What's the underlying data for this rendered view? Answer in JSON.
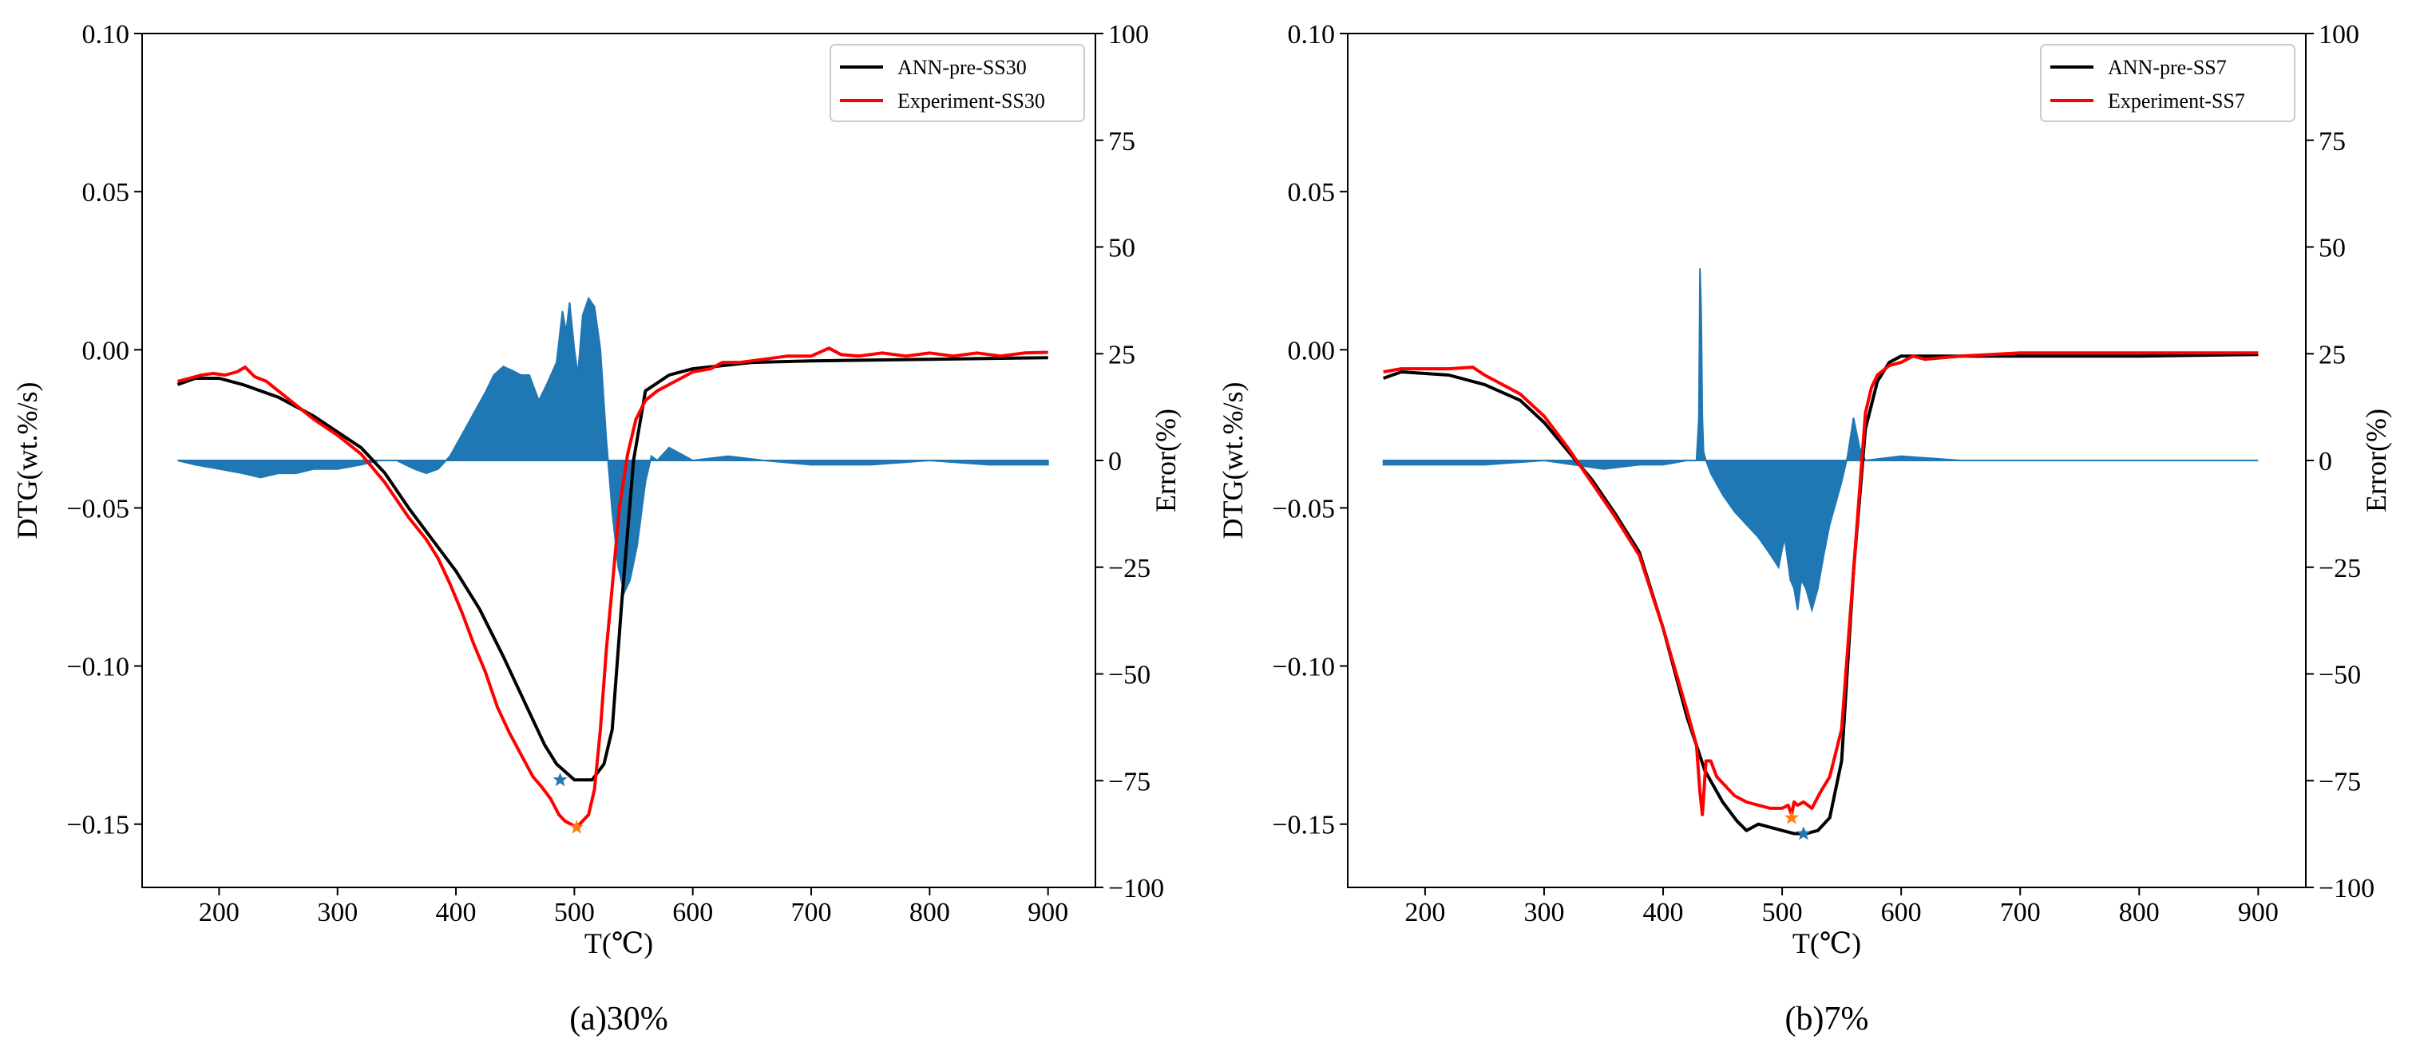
{
  "colors": {
    "ann": "#000000",
    "experiment": "#ff0000",
    "error": "#1f77b4",
    "peak_ann": "#1f77b4",
    "peak_exp": "#ff7f0e"
  },
  "chart_data": [
    {
      "type": "line",
      "panel_label": "(a)30%",
      "xlabel": "T(℃)",
      "ylabel": "DTG(wt.%/s)",
      "y2label": "Error(%)",
      "xlim": [
        135,
        940
      ],
      "ylim": [
        -0.17,
        0.1
      ],
      "y2lim": [
        -100,
        100
      ],
      "xticks": [
        200,
        300,
        400,
        500,
        600,
        700,
        800,
        900
      ],
      "xtick_labels": [
        "200",
        "300",
        "400",
        "500",
        "600",
        "700",
        "800",
        "900"
      ],
      "yticks": [
        0.1,
        0.05,
        0.0,
        -0.05,
        -0.1,
        -0.15
      ],
      "ytick_labels": [
        "0.10",
        "0.05",
        "0.00",
        "−0.05",
        "−0.10",
        "−0.15"
      ],
      "y2ticks": [
        100,
        75,
        50,
        25,
        0,
        -25,
        -50,
        -75,
        -100
      ],
      "y2tick_labels": [
        "100",
        "75",
        "50",
        "25",
        "0",
        "−25",
        "−50",
        "−75",
        "−100"
      ],
      "legend_position": "top-right",
      "series": [
        {
          "name": "ANN-pre-SS30",
          "role": "ann",
          "axis": "left",
          "x": [
            165,
            180,
            200,
            220,
            250,
            280,
            300,
            320,
            340,
            360,
            380,
            400,
            420,
            440,
            460,
            475,
            485,
            500,
            515,
            525,
            532,
            540,
            550,
            560,
            580,
            600,
            650,
            700,
            800,
            900
          ],
          "y": [
            -0.011,
            -0.009,
            -0.009,
            -0.011,
            -0.015,
            -0.021,
            -0.026,
            -0.031,
            -0.039,
            -0.05,
            -0.06,
            -0.07,
            -0.082,
            -0.097,
            -0.113,
            -0.125,
            -0.131,
            -0.136,
            -0.136,
            -0.131,
            -0.12,
            -0.08,
            -0.035,
            -0.013,
            -0.008,
            -0.006,
            -0.004,
            -0.0035,
            -0.003,
            -0.0025
          ]
        },
        {
          "name": "Experiment-SS30",
          "role": "experiment",
          "axis": "left",
          "x": [
            165,
            175,
            185,
            195,
            205,
            215,
            222,
            230,
            240,
            260,
            280,
            300,
            320,
            340,
            360,
            375,
            385,
            395,
            405,
            415,
            425,
            435,
            445,
            455,
            465,
            472,
            480,
            487,
            492,
            497,
            502,
            507,
            512,
            517,
            522,
            527,
            532,
            538,
            545,
            552,
            560,
            570,
            580,
            590,
            600,
            615,
            625,
            640,
            660,
            680,
            700,
            715,
            725,
            740,
            760,
            780,
            800,
            820,
            840,
            860,
            880,
            900
          ],
          "y": [
            -0.01,
            -0.009,
            -0.008,
            -0.0075,
            -0.008,
            -0.007,
            -0.0055,
            -0.0085,
            -0.01,
            -0.016,
            -0.022,
            -0.027,
            -0.033,
            -0.042,
            -0.053,
            -0.06,
            -0.066,
            -0.074,
            -0.083,
            -0.093,
            -0.102,
            -0.113,
            -0.121,
            -0.128,
            -0.135,
            -0.138,
            -0.142,
            -0.147,
            -0.149,
            -0.15,
            -0.151,
            -0.149,
            -0.147,
            -0.139,
            -0.12,
            -0.095,
            -0.075,
            -0.05,
            -0.033,
            -0.022,
            -0.016,
            -0.013,
            -0.011,
            -0.009,
            -0.007,
            -0.006,
            -0.004,
            -0.004,
            -0.003,
            -0.002,
            -0.002,
            0.0005,
            -0.0015,
            -0.002,
            -0.001,
            -0.002,
            -0.001,
            -0.002,
            -0.001,
            -0.002,
            -0.001,
            -0.0008
          ]
        },
        {
          "name": "Error",
          "role": "error",
          "axis": "right",
          "kind": "fill",
          "x": [
            165,
            180,
            200,
            220,
            235,
            250,
            265,
            280,
            300,
            320,
            335,
            350,
            365,
            375,
            385,
            395,
            405,
            415,
            425,
            432,
            440,
            448,
            455,
            462,
            470,
            477,
            485,
            490,
            493,
            496,
            500,
            503,
            507,
            512,
            517,
            522,
            527,
            532,
            537,
            542,
            547,
            553,
            560,
            565,
            570,
            580,
            600,
            630,
            660,
            700,
            750,
            800,
            850,
            900
          ],
          "y": [
            0,
            -1,
            -2,
            -3,
            -4,
            -3,
            -3,
            -2,
            -2,
            -1,
            0,
            0,
            -2,
            -3,
            -2,
            1,
            6,
            11,
            16,
            20,
            22,
            21,
            20,
            20,
            14,
            18,
            23,
            35,
            30,
            37,
            26,
            20,
            34,
            38,
            36,
            26,
            5,
            -12,
            -25,
            -31,
            -28,
            -20,
            -5,
            1,
            0,
            3,
            0,
            1,
            0,
            -1,
            -1,
            0,
            -1,
            -1
          ]
        }
      ],
      "markers": [
        {
          "series": "ANN-pre-SS30",
          "x": 488,
          "y": -0.136,
          "role": "peak_ann"
        },
        {
          "series": "Experiment-SS30",
          "x": 502,
          "y": -0.151,
          "role": "peak_exp"
        }
      ]
    },
    {
      "type": "line",
      "panel_label": "(b)7%",
      "xlabel": "T(℃)",
      "ylabel": "DTG(wt.%/s)",
      "y2label": "Error(%)",
      "xlim": [
        135,
        940
      ],
      "ylim": [
        -0.17,
        0.1
      ],
      "y2lim": [
        -100,
        100
      ],
      "xticks": [
        200,
        300,
        400,
        500,
        600,
        700,
        800,
        900
      ],
      "xtick_labels": [
        "200",
        "300",
        "400",
        "500",
        "600",
        "700",
        "800",
        "900"
      ],
      "yticks": [
        0.1,
        0.05,
        0.0,
        -0.05,
        -0.1,
        -0.15
      ],
      "ytick_labels": [
        "0.10",
        "0.05",
        "0.00",
        "−0.05",
        "−0.10",
        "−0.15"
      ],
      "y2ticks": [
        100,
        75,
        50,
        25,
        0,
        -25,
        -50,
        -75,
        -100
      ],
      "y2tick_labels": [
        "100",
        "75",
        "50",
        "25",
        "0",
        "−25",
        "−50",
        "−75",
        "−100"
      ],
      "legend_position": "top-right",
      "series": [
        {
          "name": "ANN-pre-SS7",
          "role": "ann",
          "axis": "left",
          "x": [
            165,
            180,
            200,
            220,
            250,
            280,
            300,
            320,
            340,
            360,
            380,
            400,
            420,
            435,
            450,
            462,
            470,
            480,
            490,
            500,
            510,
            520,
            530,
            540,
            550,
            560,
            570,
            580,
            590,
            600,
            650,
            700,
            800,
            900
          ],
          "y": [
            -0.009,
            -0.007,
            -0.0075,
            -0.008,
            -0.011,
            -0.016,
            -0.023,
            -0.032,
            -0.041,
            -0.052,
            -0.064,
            -0.088,
            -0.116,
            -0.133,
            -0.143,
            -0.149,
            -0.152,
            -0.15,
            -0.151,
            -0.152,
            -0.153,
            -0.153,
            -0.152,
            -0.148,
            -0.13,
            -0.07,
            -0.025,
            -0.01,
            -0.004,
            -0.002,
            -0.002,
            -0.002,
            -0.002,
            -0.0015
          ]
        },
        {
          "name": "Experiment-SS7",
          "role": "experiment",
          "axis": "left",
          "x": [
            165,
            180,
            200,
            220,
            240,
            250,
            260,
            280,
            300,
            320,
            340,
            360,
            380,
            400,
            420,
            428,
            431,
            433,
            436,
            440,
            445,
            450,
            460,
            470,
            480,
            490,
            500,
            505,
            508,
            510,
            513,
            518,
            525,
            532,
            540,
            550,
            560,
            570,
            575,
            580,
            590,
            600,
            610,
            620,
            650,
            700,
            750,
            800,
            850,
            900
          ],
          "y": [
            -0.007,
            -0.006,
            -0.006,
            -0.006,
            -0.0055,
            -0.008,
            -0.01,
            -0.014,
            -0.021,
            -0.031,
            -0.042,
            -0.053,
            -0.065,
            -0.088,
            -0.114,
            -0.125,
            -0.14,
            -0.147,
            -0.13,
            -0.13,
            -0.135,
            -0.137,
            -0.141,
            -0.143,
            -0.144,
            -0.145,
            -0.145,
            -0.144,
            -0.147,
            -0.143,
            -0.144,
            -0.143,
            -0.145,
            -0.14,
            -0.135,
            -0.12,
            -0.07,
            -0.02,
            -0.012,
            -0.008,
            -0.005,
            -0.004,
            -0.002,
            -0.003,
            -0.002,
            -0.001,
            -0.001,
            -0.001,
            -0.001,
            -0.001
          ]
        },
        {
          "name": "Error",
          "role": "error",
          "axis": "right",
          "kind": "fill",
          "x": [
            165,
            200,
            250,
            300,
            350,
            380,
            400,
            420,
            428,
            430,
            431,
            432,
            433,
            434,
            436,
            440,
            450,
            460,
            470,
            480,
            490,
            497,
            502,
            507,
            510,
            513,
            516,
            520,
            525,
            530,
            535,
            540,
            545,
            550,
            555,
            560,
            565,
            570,
            600,
            650,
            700,
            800,
            900
          ],
          "y": [
            -1,
            -1,
            -1,
            0,
            -2,
            -1,
            -1,
            0,
            0,
            10,
            45,
            35,
            10,
            2,
            0,
            -3,
            -8,
            -12,
            -15,
            -18,
            -22,
            -25,
            -18,
            -28,
            -30,
            -35,
            -28,
            -30,
            -35,
            -30,
            -22,
            -15,
            -10,
            -5,
            1,
            10,
            3,
            0,
            1,
            0,
            0,
            0,
            0
          ]
        }
      ],
      "markers": [
        {
          "series": "ANN-pre-SS7",
          "x": 518,
          "y": -0.153,
          "role": "peak_ann"
        },
        {
          "series": "Experiment-SS7",
          "x": 508,
          "y": -0.148,
          "role": "peak_exp"
        }
      ]
    }
  ]
}
